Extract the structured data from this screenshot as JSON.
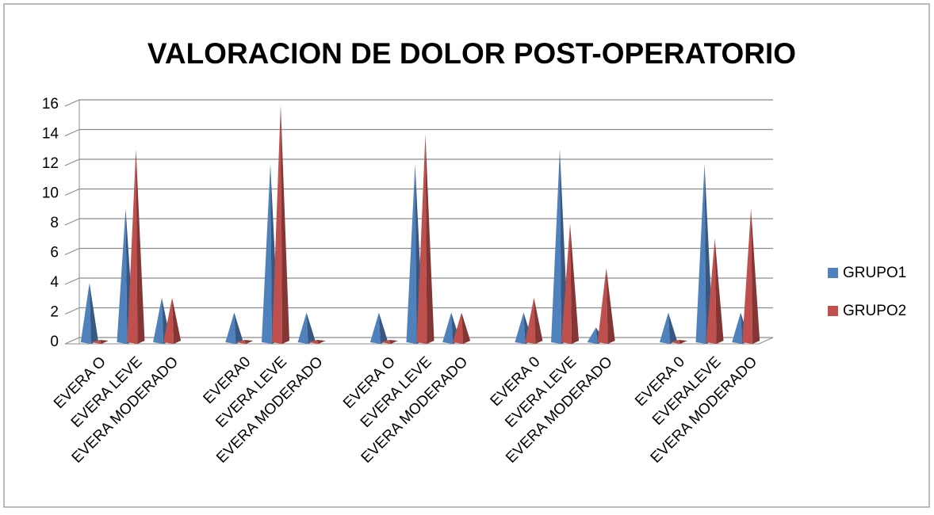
{
  "chart_data": {
    "type": "pyramid",
    "title": "VALORACION DE DOLOR POST-OPERATORIO",
    "categories": [
      "EVERA O",
      "EVERA LEVE",
      "EVERA MODERADO",
      null,
      "EVERA0",
      "EVERA LEVE",
      "EVERA MODERADO",
      null,
      "EVERA O",
      "EVERA LEVE",
      "EVERA MODERADO",
      null,
      "EVERA 0",
      "EVERA LEVE",
      "EVERA MODERADO",
      null,
      "EVERA 0",
      "EVERALEVE",
      "EVERA MODERADO"
    ],
    "series": [
      {
        "name": "GRUPO1",
        "color": "#4f81bd",
        "values": [
          4,
          9,
          3,
          null,
          2,
          12,
          2,
          null,
          2,
          12,
          2,
          null,
          2,
          13,
          1,
          null,
          2,
          12,
          2
        ]
      },
      {
        "name": "GRUPO2",
        "color": "#c0504d",
        "values": [
          0,
          13,
          3,
          null,
          0,
          16,
          0,
          null,
          0,
          14,
          2,
          null,
          3,
          8,
          5,
          null,
          0,
          7,
          9
        ]
      }
    ],
    "ylim": [
      0,
      16
    ],
    "yticks": [
      0,
      2,
      4,
      6,
      8,
      10,
      12,
      14,
      16
    ],
    "grid": true,
    "legend": "right"
  }
}
